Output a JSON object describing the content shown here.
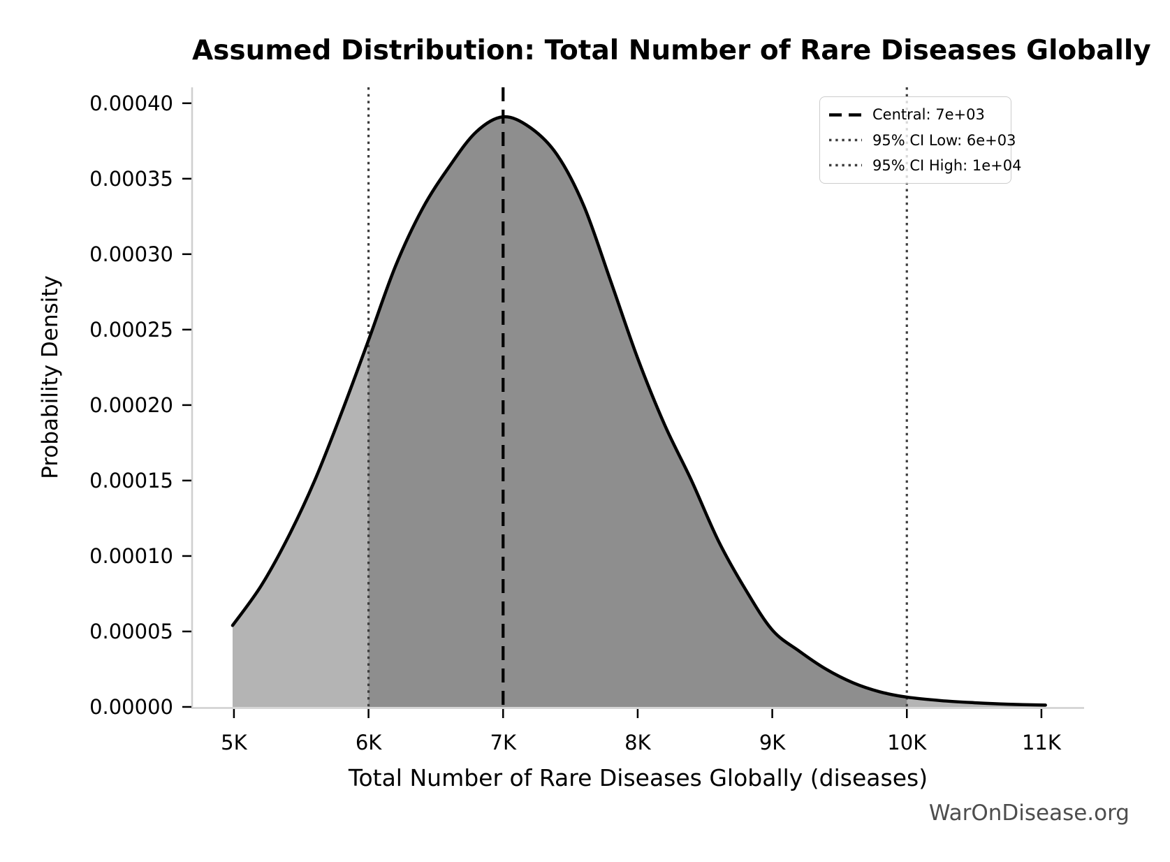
{
  "chart_data": {
    "type": "area",
    "title": "Assumed Distribution: Total Number of Rare Diseases Globally",
    "xlabel": "Total Number of Rare Diseases Globally (diseases)",
    "ylabel": "Probability Density",
    "watermark": "WarOnDisease.org",
    "grid": false,
    "legend_position": "upper right",
    "xlim": [
      4689,
      11317
    ],
    "ylim": [
      0,
      0.00041055
    ],
    "x_ticks": [
      {
        "value": 5000,
        "label": "5K"
      },
      {
        "value": 6000,
        "label": "6K"
      },
      {
        "value": 7000,
        "label": "7K"
      },
      {
        "value": 8000,
        "label": "8K"
      },
      {
        "value": 9000,
        "label": "9K"
      },
      {
        "value": 10000,
        "label": "10K"
      },
      {
        "value": 11000,
        "label": "11K"
      }
    ],
    "y_ticks": [
      {
        "value": 0.0,
        "label": "0.00000"
      },
      {
        "value": 5e-05,
        "label": "0.00005"
      },
      {
        "value": 0.0001,
        "label": "0.00010"
      },
      {
        "value": 0.00015,
        "label": "0.00015"
      },
      {
        "value": 0.0002,
        "label": "0.00020"
      },
      {
        "value": 0.00025,
        "label": "0.00025"
      },
      {
        "value": 0.0003,
        "label": "0.00030"
      },
      {
        "value": 0.00035,
        "label": "0.00035"
      },
      {
        "value": 0.0004,
        "label": "0.00040"
      }
    ],
    "central": {
      "value": 7000,
      "label": "Central: 7e+03",
      "style": "dashed"
    },
    "ci_low": {
      "value": 6000,
      "label": "95% CI Low: 6e+03",
      "style": "dotted"
    },
    "ci_high": {
      "value": 10000,
      "label": "95% CI High: 1e+04",
      "style": "dotted"
    },
    "legend": [
      {
        "style": "dashed",
        "label": "Central: 7e+03"
      },
      {
        "style": "dotted",
        "label": "95% CI Low: 6e+03"
      },
      {
        "style": "dotted",
        "label": "95% CI High: 1e+04"
      }
    ],
    "curve": {
      "x": [
        4990,
        5200,
        5400,
        5600,
        5800,
        6000,
        6200,
        6400,
        6600,
        6800,
        7000,
        7200,
        7400,
        7600,
        7800,
        8000,
        8200,
        8400,
        8600,
        8800,
        9000,
        9200,
        9400,
        9600,
        9800,
        10000,
        10250,
        10500,
        10750,
        11030
      ],
      "pdf": [
        5.4e-05,
        8e-05,
        0.000112,
        0.00015,
        0.000195,
        0.000243,
        0.000292,
        0.00033,
        0.000358,
        0.000381,
        0.000391,
        0.000384,
        0.000366,
        0.000332,
        0.000282,
        0.000231,
        0.000187,
        0.00015,
        0.00011,
        7.8e-05,
        5.1e-05,
        3.7e-05,
        2.5e-05,
        1.6e-05,
        1e-05,
        6.5e-06,
        4.2e-06,
        2.8e-06,
        1.8e-06,
        1.2e-06
      ],
      "peak_x": 7000,
      "peak_pdf": 0.000391
    },
    "colors": {
      "curve": "#000000",
      "fill_tail": "#b4b4b4",
      "fill_ci": "#8e8e8e",
      "central_line": "#000000",
      "ci_line": "#3c3c3c",
      "spine": "#cfcfcf",
      "tick": "#000000",
      "legend_border": "#cccccc",
      "watermark": "#4d4d4d"
    }
  }
}
